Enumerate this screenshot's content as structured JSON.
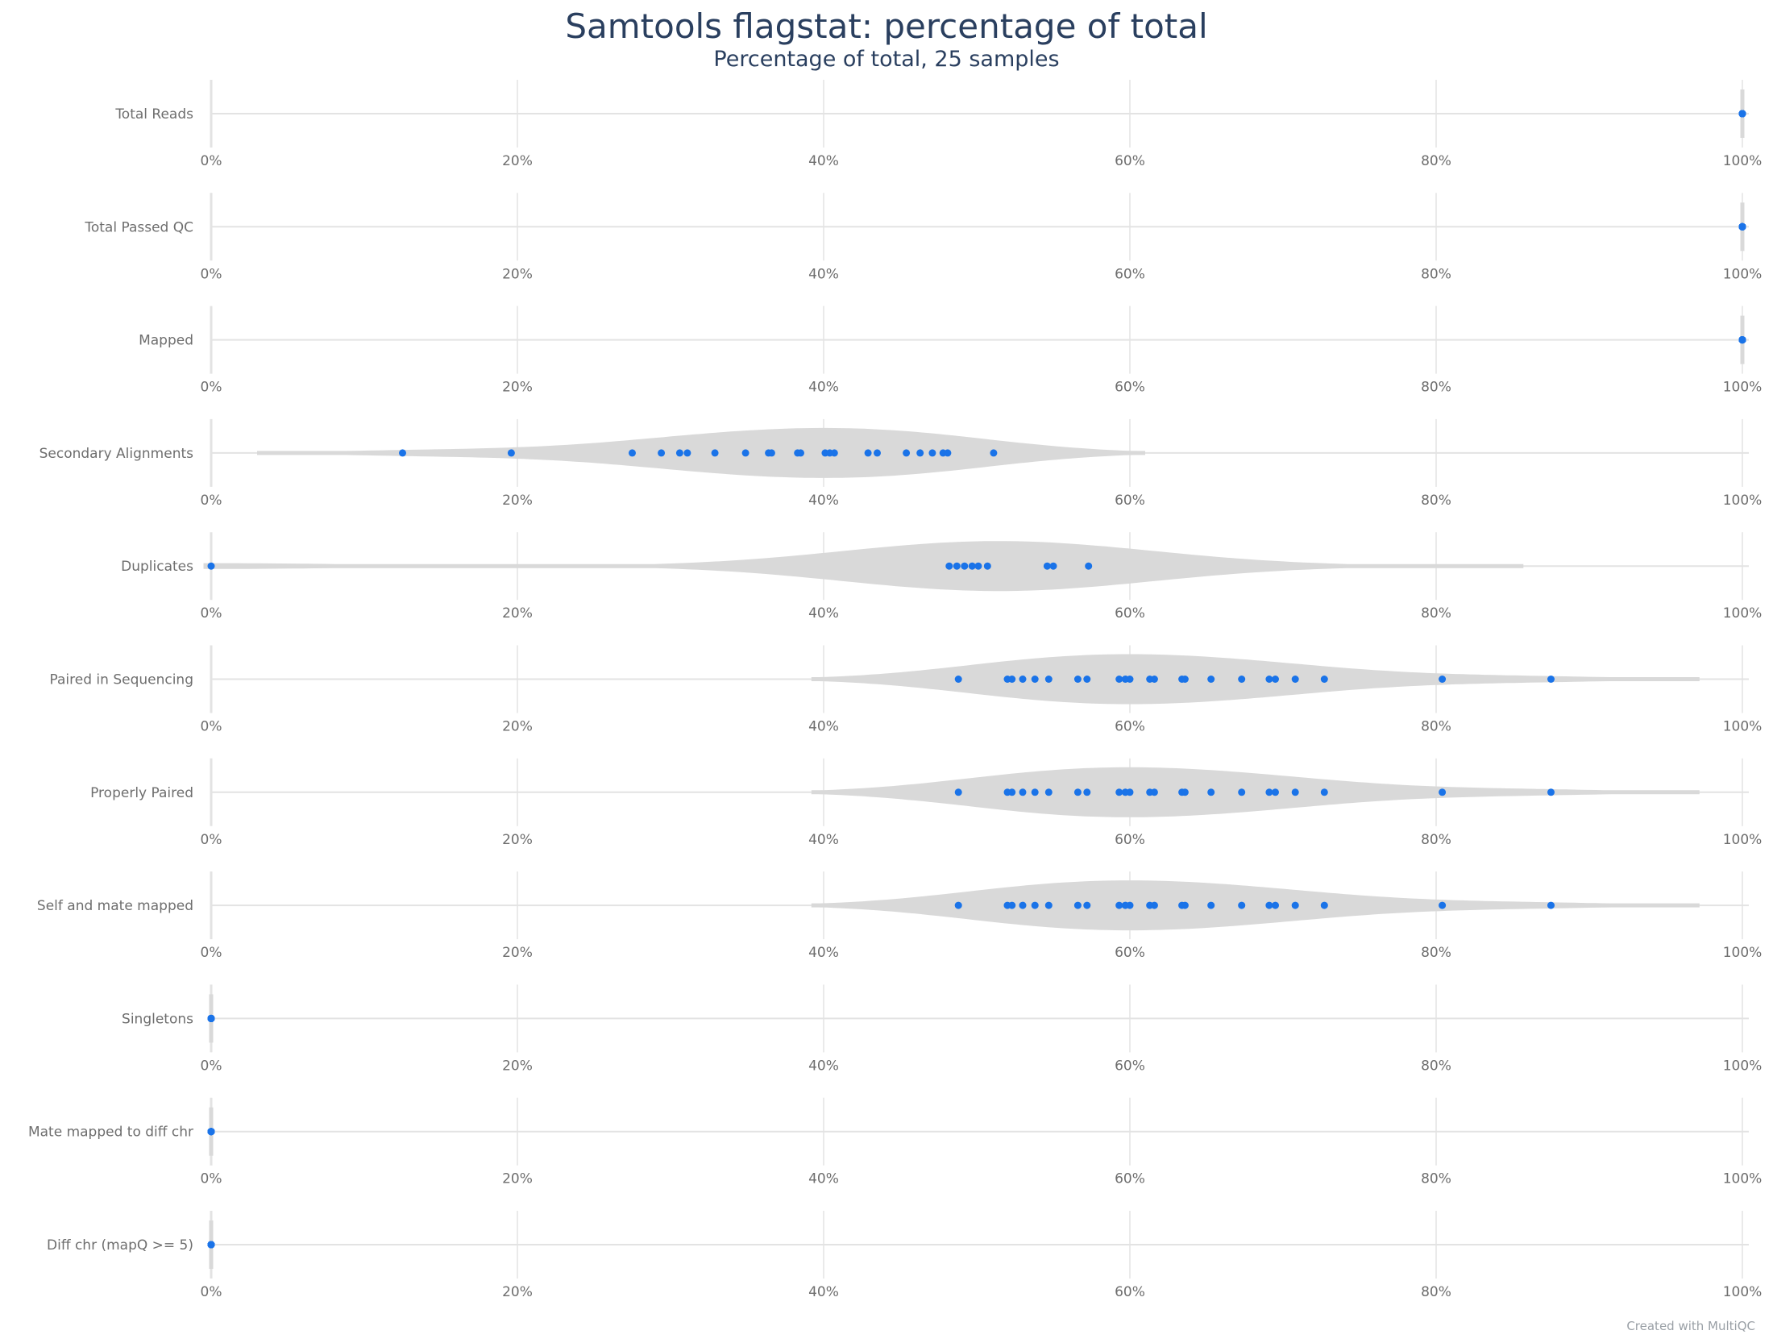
{
  "title": "Samtools flagstat: percentage of total",
  "subtitle": "Percentage of total, 25 samples",
  "credit": "Created with MultiQC",
  "colors": {
    "point": "#1a73e8",
    "violin": "#d9d9d9",
    "grid": "#e3e3e3",
    "label": "#6e6e6e",
    "title": "#2a3f5f"
  },
  "chart_data": {
    "type": "violin",
    "orientation": "horizontal",
    "xlim": [
      0,
      100
    ],
    "xticks": [
      "0%",
      "20%",
      "40%",
      "60%",
      "80%",
      "100%"
    ],
    "grid": true,
    "series": [
      {
        "name": "Total Reads",
        "points": [
          100,
          100,
          100,
          100,
          100,
          100,
          100,
          100,
          100,
          100,
          100,
          100,
          100,
          100,
          100,
          100,
          100,
          100,
          100,
          100,
          100,
          100,
          100,
          100,
          100
        ],
        "violin_range": [
          100,
          100
        ]
      },
      {
        "name": "Total Passed QC",
        "points": [
          100,
          100,
          100,
          100,
          100,
          100,
          100,
          100,
          100,
          100,
          100,
          100,
          100,
          100,
          100,
          100,
          100,
          100,
          100,
          100,
          100,
          100,
          100,
          100,
          100
        ],
        "violin_range": [
          100,
          100
        ]
      },
      {
        "name": "Mapped",
        "points": [
          100,
          100,
          100,
          100,
          100,
          100,
          100,
          100,
          100,
          100,
          100,
          100,
          100,
          100,
          100,
          100,
          100,
          100,
          100,
          100,
          100,
          100,
          100,
          100,
          100
        ],
        "violin_range": [
          100,
          100
        ]
      },
      {
        "name": "Secondary Alignments",
        "points": [
          12.5,
          19.6,
          27.5,
          29.4,
          30.6,
          31.1,
          32.9,
          34.9,
          36.4,
          36.6,
          38.3,
          38.5,
          40.1,
          40.4,
          40.7,
          42.9,
          43.5,
          45.4,
          46.3,
          47.1,
          47.8,
          48.1,
          51.1
        ],
        "violin_range": [
          3,
          61
        ]
      },
      {
        "name": "Duplicates",
        "points": [
          0,
          48.2,
          48.7,
          49.2,
          49.7,
          50.1,
          50.7,
          54.6,
          55.0,
          57.3
        ],
        "violin_range": [
          -0.5,
          85.7
        ]
      },
      {
        "name": "Paired in Sequencing",
        "points": [
          48.8,
          52.0,
          52.3,
          53.0,
          53.8,
          54.7,
          56.6,
          57.2,
          59.3,
          59.7,
          60.0,
          61.3,
          61.6,
          63.4,
          63.6,
          65.3,
          67.3,
          69.1,
          69.5,
          70.8,
          72.7,
          80.4,
          87.5
        ],
        "violin_range": [
          39.2,
          97.2
        ]
      },
      {
        "name": "Properly Paired",
        "points": [
          48.8,
          52.0,
          52.3,
          53.0,
          53.8,
          54.7,
          56.6,
          57.2,
          59.3,
          59.7,
          60.0,
          61.3,
          61.6,
          63.4,
          63.6,
          65.3,
          67.3,
          69.1,
          69.5,
          70.8,
          72.7,
          80.4,
          87.5
        ],
        "violin_range": [
          39.2,
          97.2
        ]
      },
      {
        "name": "Self and mate mapped",
        "points": [
          48.8,
          52.0,
          52.3,
          53.0,
          53.8,
          54.7,
          56.6,
          57.2,
          59.3,
          59.7,
          60.0,
          61.3,
          61.6,
          63.4,
          63.6,
          65.3,
          67.3,
          69.1,
          69.5,
          70.8,
          72.7,
          80.4,
          87.5
        ],
        "violin_range": [
          39.2,
          97.2
        ]
      },
      {
        "name": "Singletons",
        "points": [
          0,
          0,
          0,
          0,
          0,
          0,
          0,
          0,
          0,
          0,
          0,
          0,
          0,
          0,
          0,
          0,
          0,
          0,
          0,
          0,
          0,
          0,
          0,
          0,
          0
        ],
        "violin_range": [
          0,
          0
        ]
      },
      {
        "name": "Mate mapped to diff chr",
        "points": [
          0,
          0,
          0,
          0,
          0,
          0,
          0,
          0,
          0,
          0,
          0,
          0,
          0,
          0,
          0,
          0,
          0,
          0,
          0,
          0,
          0,
          0,
          0,
          0,
          0
        ],
        "violin_range": [
          0,
          0
        ]
      },
      {
        "name": "Diff chr (mapQ >= 5)",
        "points": [
          0,
          0,
          0,
          0,
          0,
          0,
          0,
          0,
          0,
          0,
          0,
          0,
          0,
          0,
          0,
          0,
          0,
          0,
          0,
          0,
          0,
          0,
          0,
          0,
          0
        ],
        "violin_range": [
          0,
          0
        ]
      }
    ]
  }
}
